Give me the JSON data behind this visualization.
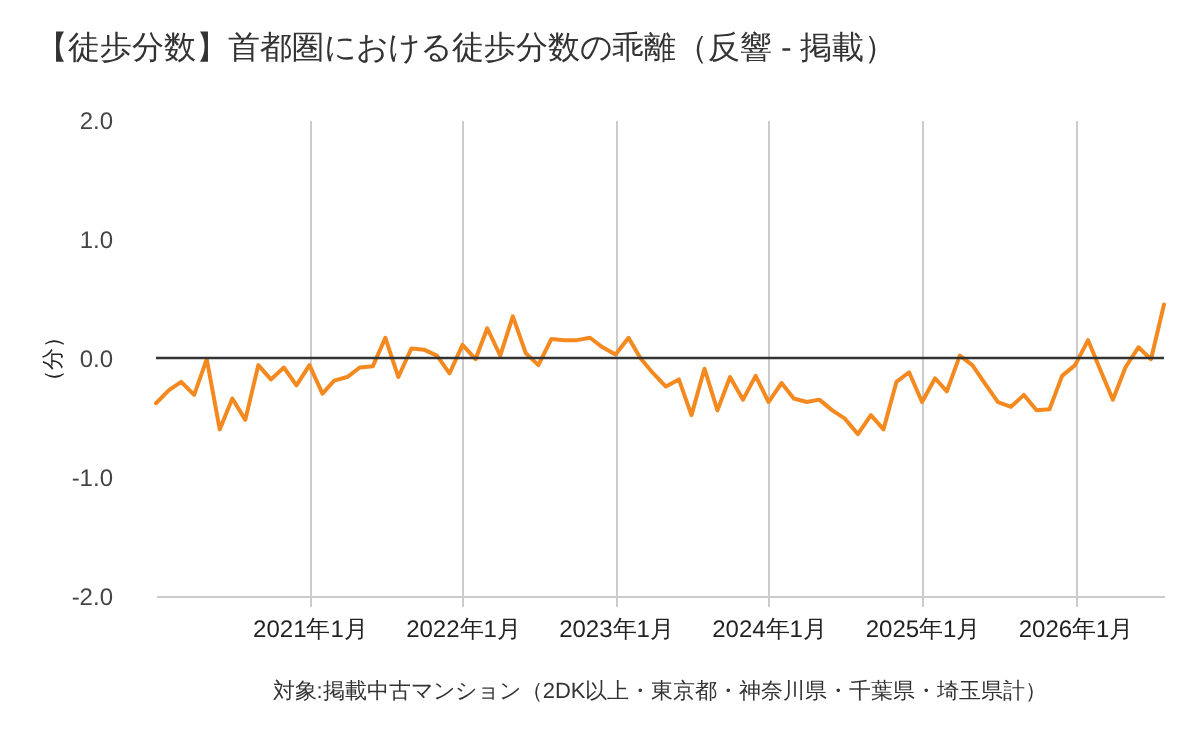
{
  "chart_data": {
    "type": "line",
    "title": "【徒歩分数】首都圏における徒歩分数の乖離（反響 - 掲載）",
    "ylabel": "（分）",
    "annotations": [
      "対象:掲載中古マンション（2DK以上・東京都・神奈川県・千葉県・埼玉県計）"
    ],
    "x": [
      "2020-01",
      "2020-02",
      "2020-03",
      "2020-04",
      "2020-05",
      "2020-06",
      "2020-07",
      "2020-08",
      "2020-09",
      "2020-10",
      "2020-11",
      "2020-12",
      "2021-01",
      "2021-02",
      "2021-03",
      "2021-04",
      "2021-05",
      "2021-06",
      "2021-07",
      "2021-08",
      "2021-09",
      "2021-10",
      "2021-11",
      "2021-12",
      "2022-01",
      "2022-02",
      "2022-03",
      "2022-04",
      "2022-05",
      "2022-06",
      "2022-07",
      "2022-08",
      "2022-09",
      "2022-10",
      "2022-11",
      "2022-12",
      "2023-01",
      "2023-02",
      "2023-03",
      "2023-04",
      "2023-05",
      "2023-06",
      "2023-07",
      "2023-08",
      "2023-09",
      "2023-10",
      "2023-11",
      "2023-12",
      "2024-01",
      "2024-02",
      "2024-03",
      "2024-04",
      "2024-05",
      "2024-06",
      "2024-07",
      "2024-08",
      "2024-09",
      "2024-10",
      "2024-11",
      "2024-12",
      "2025-01",
      "2025-02",
      "2025-03",
      "2025-04",
      "2025-05",
      "2025-06",
      "2025-07",
      "2025-08",
      "2025-09",
      "2025-10",
      "2025-11",
      "2025-12",
      "2026-01",
      "2026-02",
      "2026-03",
      "2026-04",
      "2026-05",
      "2026-06",
      "2026-07",
      "2026-08"
    ],
    "series": [
      {
        "color": "#f4891f",
        "values": [
          -0.38,
          -0.27,
          -0.2,
          -0.31,
          -0.01,
          -0.6,
          -0.34,
          -0.52,
          -0.06,
          -0.18,
          -0.08,
          -0.23,
          -0.06,
          -0.3,
          -0.19,
          -0.16,
          -0.08,
          -0.07,
          0.17,
          -0.16,
          0.08,
          0.07,
          0.02,
          -0.13,
          0.11,
          -0.01,
          0.25,
          0.02,
          0.35,
          0.04,
          -0.06,
          0.16,
          0.15,
          0.15,
          0.17,
          0.09,
          0.03,
          0.17,
          0.0,
          -0.13,
          -0.24,
          -0.18,
          -0.48,
          -0.09,
          -0.44,
          -0.16,
          -0.35,
          -0.15,
          -0.37,
          -0.21,
          -0.34,
          -0.37,
          -0.35,
          -0.44,
          -0.51,
          -0.64,
          -0.48,
          -0.6,
          -0.2,
          -0.12,
          -0.37,
          -0.17,
          -0.28,
          0.02,
          -0.06,
          -0.22,
          -0.37,
          -0.41,
          -0.31,
          -0.44,
          -0.43,
          -0.15,
          -0.06,
          0.15,
          -0.09,
          -0.35,
          -0.08,
          0.09,
          -0.01,
          0.45
        ]
      }
    ],
    "xlim": [
      "2020-01",
      "2026-08"
    ],
    "xticks": [
      {
        "value": "2021-01",
        "label": "2021年1月"
      },
      {
        "value": "2022-01",
        "label": "2022年1月"
      },
      {
        "value": "2023-01",
        "label": "2023年1月"
      },
      {
        "value": "2024-01",
        "label": "2024年1月"
      },
      {
        "value": "2025-01",
        "label": "2025年1月"
      },
      {
        "value": "2026-01",
        "label": "2026年1月"
      }
    ],
    "ylim": [
      -2,
      2
    ],
    "yticks": [
      {
        "value": -2,
        "label": "-2.0"
      },
      {
        "value": -1,
        "label": "-1.0"
      },
      {
        "value": 0,
        "label": "0.0"
      },
      {
        "value": 1,
        "label": "1.0"
      },
      {
        "value": 2,
        "label": "2.0"
      }
    ],
    "grid": "x",
    "marker": "none",
    "line_style": "solid",
    "ref_lines": [
      {
        "axis": "y",
        "value": 0,
        "color": "#333333"
      }
    ]
  }
}
